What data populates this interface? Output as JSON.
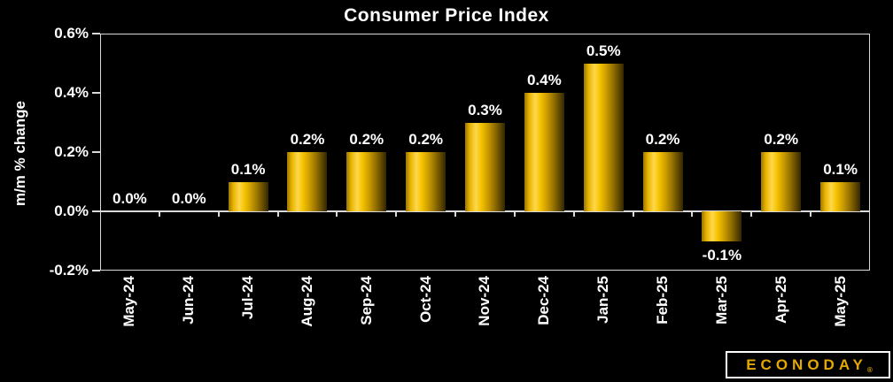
{
  "title": "Consumer Price Index",
  "y_axis": {
    "label": "m/m % change",
    "tick_labels": [
      "0.6%",
      "0.4%",
      "0.2%",
      "0.0%",
      "-0.2%"
    ],
    "tick_values": [
      0.6,
      0.4,
      0.2,
      0.0,
      -0.2
    ]
  },
  "chart_data": {
    "type": "bar",
    "title": "Consumer Price Index",
    "xlabel": "",
    "ylabel": "m/m % change",
    "categories": [
      "May-24",
      "Jun-24",
      "Jul-24",
      "Aug-24",
      "Sep-24",
      "Oct-24",
      "Nov-24",
      "Dec-24",
      "Jan-25",
      "Feb-25",
      "Mar-25",
      "Apr-25",
      "May-25"
    ],
    "values": [
      0.0,
      0.0,
      0.1,
      0.2,
      0.2,
      0.2,
      0.3,
      0.4,
      0.5,
      0.2,
      -0.1,
      0.2,
      0.1
    ],
    "data_labels": [
      "0.0%",
      "0.0%",
      "0.1%",
      "0.2%",
      "0.2%",
      "0.2%",
      "0.3%",
      "0.4%",
      "0.5%",
      "0.2%",
      "-0.1%",
      "0.2%",
      "0.1%"
    ],
    "ylim": [
      -0.2,
      0.6
    ],
    "ytick_step": 0.2,
    "grid": false,
    "legend": false
  },
  "branding": {
    "logo_text": "ECONODAY",
    "registered_mark": "®"
  },
  "colors": {
    "background": "#000000",
    "text": "#ffffff",
    "axis": "#d9d9d9",
    "bar_highlight": "#ffd84d",
    "bar_mid": "#cfa000",
    "bar_shadow": "#332600",
    "logo_gold": "#e4a900"
  }
}
